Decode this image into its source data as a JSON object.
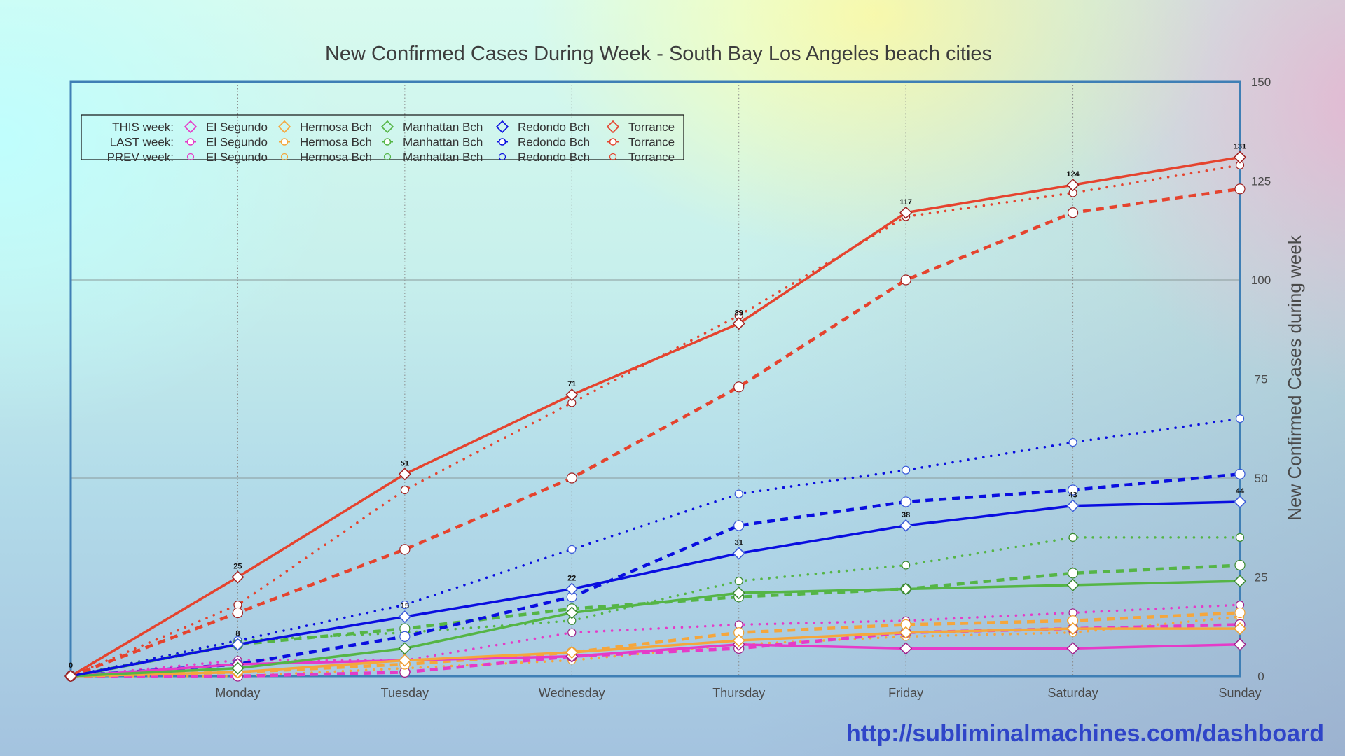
{
  "chart_data": {
    "type": "line",
    "title": "New Confirmed Cases During Week - South Bay Los Angeles beach cities",
    "xlabel": "",
    "ylabel": "New Confirmed Cases during week",
    "categories": [
      "",
      "Monday",
      "Tuesday",
      "Wednesday",
      "Thursday",
      "Friday",
      "Saturday",
      "Sunday"
    ],
    "ylim": [
      0,
      150
    ],
    "yticks": [
      0,
      25,
      50,
      75,
      100,
      125,
      150
    ],
    "y_axis_side": "right",
    "grid": true,
    "legend_position": "top-left",
    "legend_rows": [
      {
        "label": "THIS week:",
        "style": "solid",
        "marker": "diamond"
      },
      {
        "label": "LAST week:",
        "style": "dashed",
        "marker": "circle"
      },
      {
        "label": "PREV week:",
        "style": "dotted",
        "marker": "circle"
      }
    ],
    "cities": [
      {
        "name": "El Segundo",
        "color": "#e53bc8",
        "marker_color": "#a0208a"
      },
      {
        "name": "Hermosa Bch",
        "color": "#f5a63c",
        "marker_color": "#f0a030"
      },
      {
        "name": "Manhattan Bch",
        "color": "#55b546",
        "marker_color": "#3a8a30"
      },
      {
        "name": "Redondo Bch",
        "color": "#0a0ee0",
        "marker_color": "#3a5ad8"
      },
      {
        "name": "Torrance",
        "color": "#e5432e",
        "marker_color": "#a02020"
      }
    ],
    "series": [
      {
        "name": "PREV week: El Segundo",
        "city": 0,
        "week": "PREV",
        "values": [
          0,
          4,
          4,
          11,
          13,
          14,
          16,
          18
        ]
      },
      {
        "name": "PREV week: Hermosa Bch",
        "city": 1,
        "week": "PREV",
        "values": [
          0,
          0,
          2,
          4,
          8,
          10,
          11,
          15
        ]
      },
      {
        "name": "PREV week: Manhattan Bch",
        "city": 2,
        "week": "PREV",
        "values": [
          0,
          9,
          11,
          14,
          24,
          28,
          35,
          35
        ]
      },
      {
        "name": "PREV week: Redondo Bch",
        "city": 3,
        "week": "PREV",
        "values": [
          0,
          9,
          18,
          32,
          46,
          52,
          59,
          65
        ]
      },
      {
        "name": "PREV week: Torrance",
        "city": 4,
        "week": "PREV",
        "values": [
          0,
          18,
          47,
          69,
          91,
          116,
          122,
          129
        ]
      },
      {
        "name": "LAST week: El Segundo",
        "city": 0,
        "week": "LAST",
        "values": [
          0,
          0,
          1,
          5,
          7,
          11,
          12,
          13
        ]
      },
      {
        "name": "LAST week: Hermosa Bch",
        "city": 1,
        "week": "LAST",
        "values": [
          0,
          1,
          3,
          6,
          11,
          13,
          14,
          16
        ]
      },
      {
        "name": "LAST week: Manhattan Bch",
        "city": 2,
        "week": "LAST",
        "values": [
          0,
          8,
          12,
          17,
          20,
          22,
          26,
          28
        ]
      },
      {
        "name": "LAST week: Redondo Bch",
        "city": 3,
        "week": "LAST",
        "values": [
          0,
          3,
          10,
          20,
          38,
          44,
          47,
          51
        ]
      },
      {
        "name": "LAST week: Torrance",
        "city": 4,
        "week": "LAST",
        "values": [
          0,
          16,
          32,
          50,
          73,
          100,
          117,
          123
        ]
      },
      {
        "name": "THIS week: El Segundo",
        "city": 0,
        "week": "THIS",
        "values": [
          0,
          3,
          4,
          5,
          8,
          7,
          7,
          8
        ]
      },
      {
        "name": "THIS week: Hermosa Bch",
        "city": 1,
        "week": "THIS",
        "values": [
          0,
          1,
          4,
          6,
          9,
          11,
          12,
          12
        ]
      },
      {
        "name": "THIS week: Manhattan Bch",
        "city": 2,
        "week": "THIS",
        "values": [
          0,
          2,
          7,
          16,
          21,
          22,
          23,
          24
        ]
      },
      {
        "name": "THIS week: Redondo Bch",
        "city": 3,
        "week": "THIS",
        "values": [
          0,
          8,
          15,
          22,
          31,
          38,
          43,
          44
        ]
      },
      {
        "name": "THIS week: Torrance",
        "city": 4,
        "week": "THIS",
        "values": [
          0,
          25,
          51,
          71,
          89,
          117,
          124,
          131
        ]
      }
    ],
    "data_labels": [
      {
        "series": "THIS week: Torrance",
        "index": 0,
        "text": "0"
      },
      {
        "series": "THIS week: Torrance",
        "index": 1,
        "text": "25"
      },
      {
        "series": "THIS week: Torrance",
        "index": 2,
        "text": "51"
      },
      {
        "series": "THIS week: Torrance",
        "index": 3,
        "text": "71"
      },
      {
        "series": "THIS week: Torrance",
        "index": 4,
        "text": "89"
      },
      {
        "series": "THIS week: Torrance",
        "index": 5,
        "text": "117"
      },
      {
        "series": "THIS week: Torrance",
        "index": 6,
        "text": "124"
      },
      {
        "series": "THIS week: Torrance",
        "index": 7,
        "text": "131"
      },
      {
        "series": "THIS week: Redondo Bch",
        "index": 1,
        "text": "8"
      },
      {
        "series": "THIS week: Redondo Bch",
        "index": 2,
        "text": "15"
      },
      {
        "series": "THIS week: Redondo Bch",
        "index": 3,
        "text": "22"
      },
      {
        "series": "THIS week: Redondo Bch",
        "index": 4,
        "text": "31"
      },
      {
        "series": "THIS week: Redondo Bch",
        "index": 5,
        "text": "38"
      },
      {
        "series": "THIS week: Redondo Bch",
        "index": 6,
        "text": "43"
      },
      {
        "series": "THIS week: Redondo Bch",
        "index": 7,
        "text": "44"
      }
    ]
  },
  "footer": {
    "url": "http://subliminalmachines.com/dashboard",
    "url_color": "#2f45c8"
  },
  "colors": {
    "frame": "#3f7fb5",
    "grid": "#8a9a9a"
  }
}
